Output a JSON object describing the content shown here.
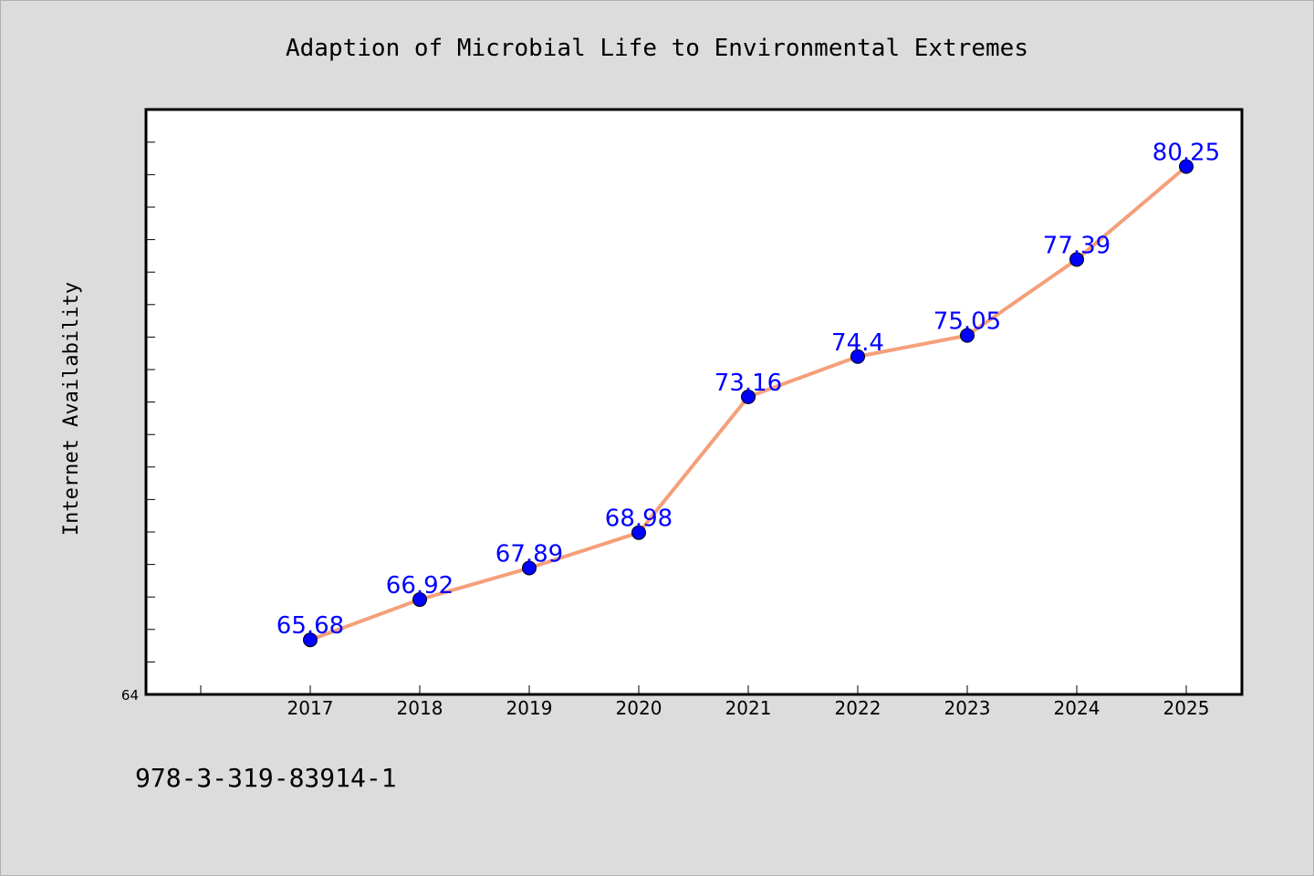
{
  "chart_data": {
    "type": "line",
    "title": "Adaption of Microbial Life to Environmental Extremes",
    "xlabel": "",
    "ylabel": "Internet Availability",
    "categories": [
      "2017",
      "2018",
      "2019",
      "2020",
      "2021",
      "2022",
      "2023",
      "2024",
      "2025"
    ],
    "series": [
      {
        "values": [
          65.68,
          66.92,
          67.89,
          68.98,
          73.16,
          74.4,
          75.05,
          77.39,
          80.25
        ],
        "labels": [
          "65.68",
          "66.92",
          "67.89",
          "68.98",
          "73.16",
          "74.4",
          "75.05",
          "77.39",
          "80.25"
        ]
      }
    ],
    "ylim": [
      64,
      82
    ],
    "yticks_labeled": [
      "64"
    ],
    "grid": false,
    "legend": "none",
    "colors": {
      "line": "#f4a07a",
      "marker": "#0000ff",
      "label": "#0000ff",
      "plot_background": "#ffffff",
      "figure_background": "#dcdcdc"
    }
  },
  "footer": {
    "isbn": "978-3-319-83914-1"
  }
}
